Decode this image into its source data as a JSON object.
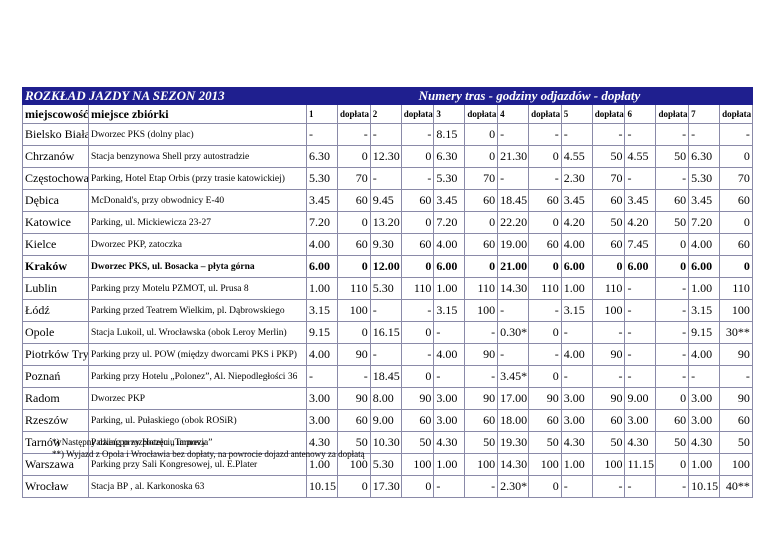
{
  "table": {
    "title": "ROZKŁAD JAZDY NA SEZON 2013",
    "subtitle": "Numery tras  -  godziny odjazdów  -  dopłaty",
    "columns": [
      "miejscowość",
      "miejsce zbiórki",
      "1",
      "dopłata",
      "2",
      "dopłata",
      "3",
      "dopłata",
      "4",
      "dopłata",
      "5",
      "dopłata",
      "6",
      "dopłata",
      "7",
      "dopłata"
    ],
    "rows": [
      [
        "Bielsko Biała",
        "Dworzec PKS (dolny plac)",
        "-",
        "-",
        "-",
        "-",
        "8.15",
        "0",
        "-",
        "-",
        "-",
        "-",
        "-",
        "-",
        "-",
        "-"
      ],
      [
        "Chrzanów",
        "Stacja benzynowa Shell przy autostradzie",
        "6.30",
        "0",
        "12.30",
        "0",
        "6.30",
        "0",
        "21.30",
        "0",
        "4.55",
        "50",
        "4.55",
        "50",
        "6.30",
        "0"
      ],
      [
        "Częstochowa",
        "Parking, Hotel Etap Orbis (przy trasie katowickiej)",
        "5.30",
        "70",
        "-",
        "-",
        "5.30",
        "70",
        "-",
        "-",
        "2.30",
        "70",
        "-",
        "-",
        "5.30",
        "70"
      ],
      [
        "Dębica",
        "McDonald's, przy obwodnicy E-40",
        "3.45",
        "60",
        "9.45",
        "60",
        "3.45",
        "60",
        "18.45",
        "60",
        "3.45",
        "60",
        "3.45",
        "60",
        "3.45",
        "60"
      ],
      [
        "Katowice",
        "Parking, ul. Mickiewicza 23-27",
        "7.20",
        "0",
        "13.20",
        "0",
        "7.20",
        "0",
        "22.20",
        "0",
        "4.20",
        "50",
        "4.20",
        "50",
        "7.20",
        "0"
      ],
      [
        "Kielce",
        "Dworzec PKP, zatoczka",
        "4.00",
        "60",
        "9.30",
        "60",
        "4.00",
        "60",
        "19.00",
        "60",
        "4.00",
        "60",
        "7.45",
        "0",
        "4.00",
        "60"
      ],
      [
        "Kraków",
        "Dworzec PKS, ul. Bosacka – płyta górna",
        "6.00",
        "0",
        "12.00",
        "0",
        "6.00",
        "0",
        "21.00",
        "0",
        "6.00",
        "0",
        "6.00",
        "0",
        "6.00",
        "0"
      ],
      [
        "Lublin",
        "Parking przy Motelu PZMOT, ul. Prusa 8",
        "1.00",
        "110",
        "5.30",
        "110",
        "1.00",
        "110",
        "14.30",
        "110",
        "1.00",
        "110",
        "-",
        "-",
        "1.00",
        "110"
      ],
      [
        "Łódź",
        "Parking przed Teatrem Wielkim, pl. Dąbrowskiego",
        "3.15",
        "100",
        "-",
        "-",
        "3.15",
        "100",
        "-",
        "-",
        "3.15",
        "100",
        "-",
        "-",
        "3.15",
        "100"
      ],
      [
        "Opole",
        "Stacja Lukoil, ul. Wrocławska (obok Leroy Merlin)",
        "9.15",
        "0",
        "16.15",
        "0",
        "-",
        "-",
        "0.30*",
        "0",
        "-",
        "-",
        "-",
        "-",
        "9.15",
        "30**"
      ],
      [
        "Piotrków Tryb.",
        "Parking przy ul. POW (między dworcami PKS i PKP)",
        "4.00",
        "90",
        "-",
        "-",
        "4.00",
        "90",
        "-",
        "-",
        "4.00",
        "90",
        "-",
        "-",
        "4.00",
        "90"
      ],
      [
        "Poznań",
        "Parking przy Hotelu „Polonez”, Al. Niepodległości 36",
        "-",
        "-",
        "18.45",
        "0",
        "-",
        "-",
        "3.45*",
        "0",
        "-",
        "-",
        "-",
        "-",
        "-",
        "-"
      ],
      [
        "Radom",
        "Dworzec PKP",
        "3.00",
        "90",
        "8.00",
        "90",
        "3.00",
        "90",
        "17.00",
        "90",
        "3.00",
        "90",
        "9.00",
        "0",
        "3.00",
        "90"
      ],
      [
        "Rzeszów",
        "Parking, ul. Pułaskiego (obok ROSiR)",
        "3.00",
        "60",
        "9.00",
        "60",
        "3.00",
        "60",
        "18.00",
        "60",
        "3.00",
        "60",
        "3.00",
        "60",
        "3.00",
        "60"
      ],
      [
        "Tarnów",
        "Parking przy Hotelu „Tarnovia”",
        "4.30",
        "50",
        "10.30",
        "50",
        "4.30",
        "50",
        "19.30",
        "50",
        "4.30",
        "50",
        "4.30",
        "50",
        "4.30",
        "50"
      ],
      [
        "Warszawa",
        "Parking przy Sali Kongresowej, ul. E.Plater",
        "1.00",
        "100",
        "5.30",
        "100",
        "1.00",
        "100",
        "14.30",
        "100",
        "1.00",
        "100",
        "11.15",
        "0",
        "1.00",
        "100"
      ],
      [
        "Wrocław",
        "Stacja  BP , al. Karkonoska  63",
        "10.15",
        "0",
        "17.30",
        "0",
        "-",
        "-",
        "2.30*",
        "0",
        "-",
        "-",
        "-",
        "-",
        "10.15",
        "40**"
      ]
    ],
    "footnotes": [
      "*) Następny dzień po rozpoczęciu imprezy",
      "**) Wyjazd z Opola i Wrocławia bez dopłaty, na powrocie dojazd antenowy za dopłatą"
    ]
  }
}
